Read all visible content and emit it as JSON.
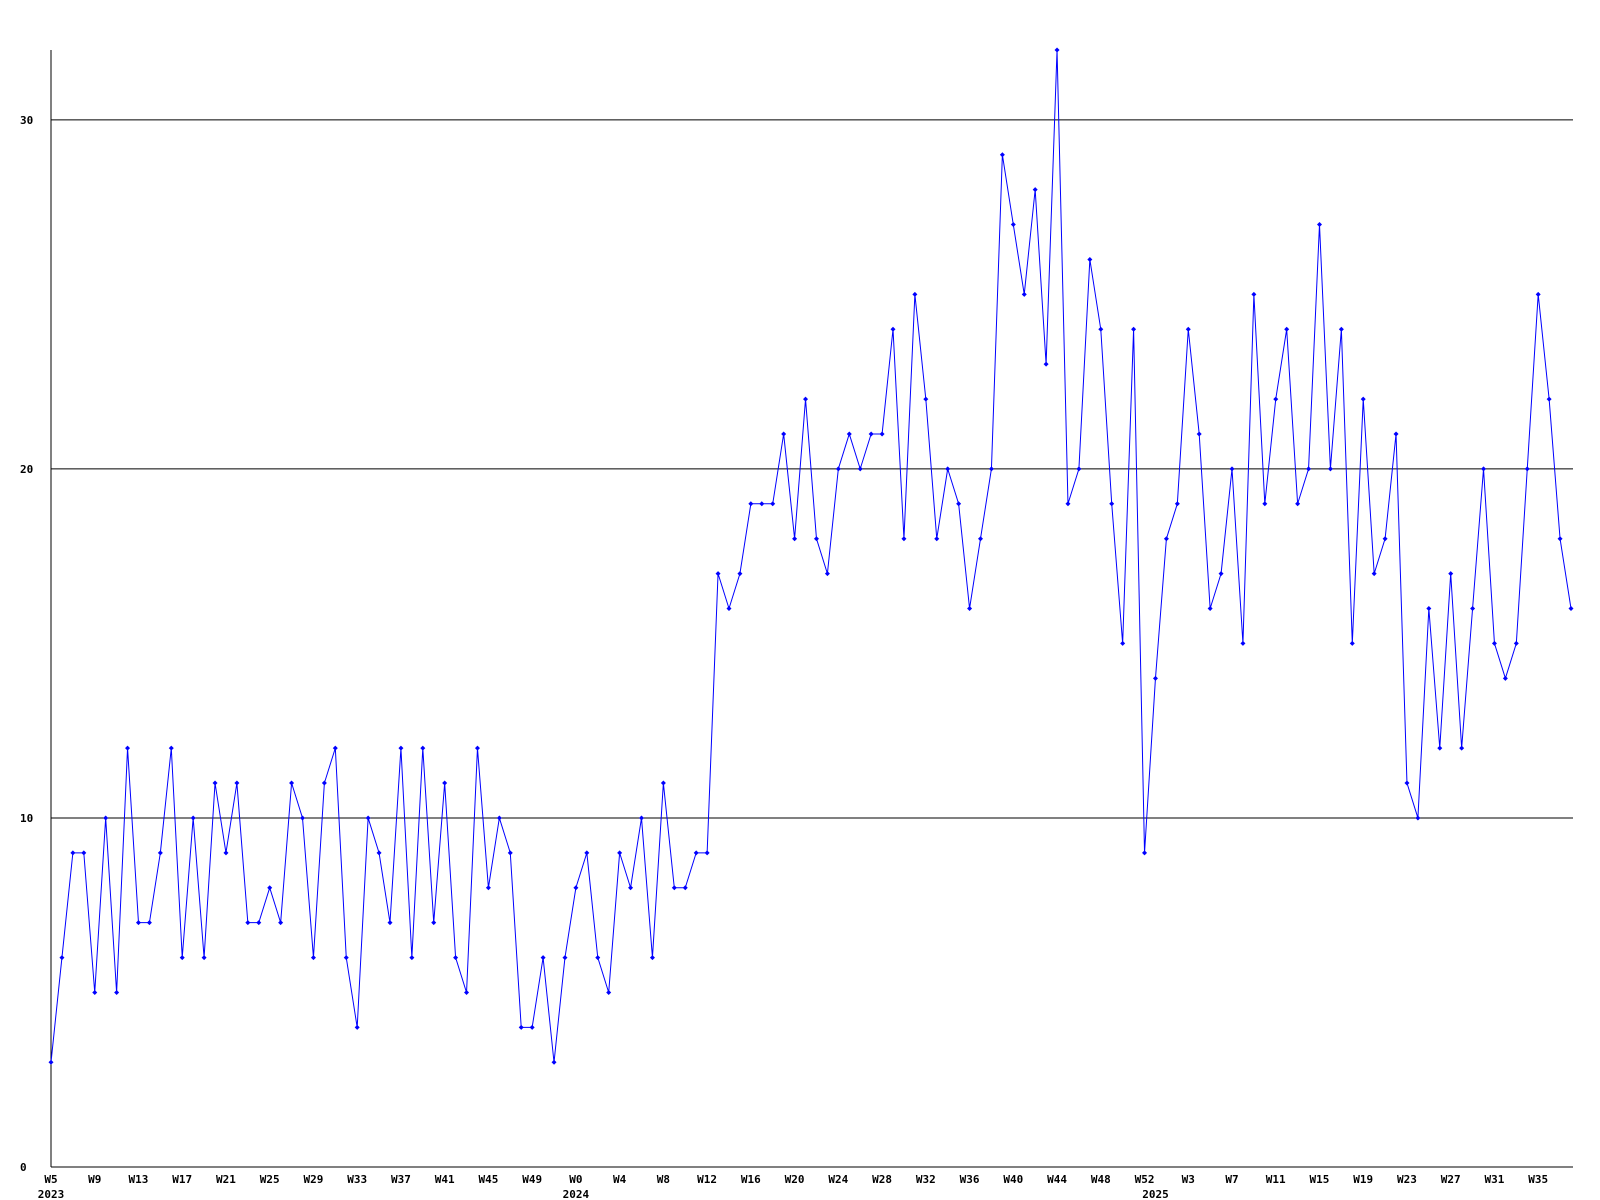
{
  "chart_data": {
    "type": "line",
    "categories": [
      "W5",
      null,
      null,
      null,
      "W9",
      null,
      null,
      null,
      "W13",
      null,
      null,
      null,
      "W17",
      null,
      null,
      null,
      "W21",
      null,
      null,
      null,
      "W25",
      null,
      null,
      null,
      "W29",
      null,
      null,
      null,
      "W33",
      null,
      null,
      null,
      "W37",
      null,
      null,
      null,
      "W41",
      null,
      null,
      null,
      "W45",
      null,
      null,
      null,
      "W49",
      null,
      null,
      null,
      "W0",
      null,
      null,
      null,
      "W4",
      null,
      null,
      null,
      "W8",
      null,
      null,
      null,
      "W12",
      null,
      null,
      null,
      "W16",
      null,
      null,
      null,
      "W20",
      null,
      null,
      null,
      "W24",
      null,
      null,
      null,
      "W28",
      null,
      null,
      null,
      "W32",
      null,
      null,
      null,
      "W36",
      null,
      null,
      null,
      "W40",
      null,
      null,
      null,
      "W44",
      null,
      null,
      null,
      "W48",
      null,
      null,
      null,
      "W52",
      null,
      null,
      null,
      "W3",
      null,
      null,
      null,
      "W7",
      null,
      null,
      null,
      "W11",
      null,
      null,
      null,
      "W15",
      null,
      null,
      null,
      "W19",
      null,
      null,
      null,
      "W23",
      null,
      null,
      null,
      "W27",
      null,
      null,
      null,
      "W31",
      null,
      null,
      null,
      "W35",
      null,
      null,
      null
    ],
    "year_labels": [
      "2023",
      null,
      null,
      null,
      null,
      null,
      null,
      null,
      null,
      null,
      null,
      null,
      null,
      null,
      null,
      null,
      null,
      null,
      null,
      null,
      null,
      null,
      null,
      null,
      null,
      null,
      null,
      null,
      null,
      null,
      null,
      null,
      null,
      null,
      null,
      null,
      null,
      null,
      null,
      null,
      null,
      null,
      null,
      null,
      null,
      null,
      null,
      null,
      "2024",
      null,
      null,
      null,
      null,
      null,
      null,
      null,
      null,
      null,
      null,
      null,
      null,
      null,
      null,
      null,
      null,
      null,
      null,
      null,
      null,
      null,
      null,
      null,
      null,
      null,
      null,
      null,
      null,
      null,
      null,
      null,
      null,
      null,
      null,
      null,
      null,
      null,
      null,
      null,
      null,
      null,
      null,
      null,
      null,
      null,
      null,
      null,
      null,
      null,
      null,
      null,
      null,
      "2025",
      null,
      null,
      null,
      null,
      null,
      null,
      null,
      null,
      null,
      null,
      null,
      null,
      null,
      null,
      null,
      null,
      null,
      null,
      null,
      null,
      null,
      null,
      null,
      null,
      null,
      null,
      null,
      null,
      null,
      null,
      null,
      null,
      null,
      null,
      null,
      null,
      null,
      null
    ],
    "series": [
      {
        "color": "#0000ff",
        "values": [
          3,
          6,
          9,
          9,
          5,
          10,
          5,
          12,
          7,
          7,
          9,
          12,
          6,
          10,
          6,
          11,
          9,
          11,
          7,
          7,
          8,
          7,
          11,
          10,
          6,
          11,
          12,
          6,
          4,
          10,
          9,
          7,
          12,
          6,
          12,
          7,
          11,
          6,
          5,
          12,
          8,
          10,
          9,
          4,
          4,
          6,
          3,
          6,
          8,
          9,
          6,
          5,
          9,
          8,
          10,
          6,
          11,
          8,
          8,
          9,
          9,
          17,
          16,
          17,
          19,
          19,
          19,
          21,
          18,
          22,
          18,
          17,
          20,
          21,
          20,
          21,
          21,
          24,
          18,
          25,
          22,
          18,
          20,
          19,
          16,
          18,
          20,
          29,
          27,
          25,
          28,
          23,
          32,
          19,
          20,
          26,
          24,
          19,
          15,
          24,
          9,
          14,
          18,
          19,
          24,
          21,
          16,
          17,
          20,
          15,
          25,
          19,
          22,
          24,
          19,
          20,
          27,
          20,
          24,
          15,
          22,
          17,
          18,
          21,
          11,
          10,
          16,
          12,
          17,
          12,
          16,
          20,
          15,
          14,
          15,
          20,
          25,
          22,
          18,
          16
        ]
      }
    ],
    "ylim": [
      0,
      32
    ],
    "yticks": [
      0,
      10,
      20,
      30
    ],
    "grid": true
  }
}
